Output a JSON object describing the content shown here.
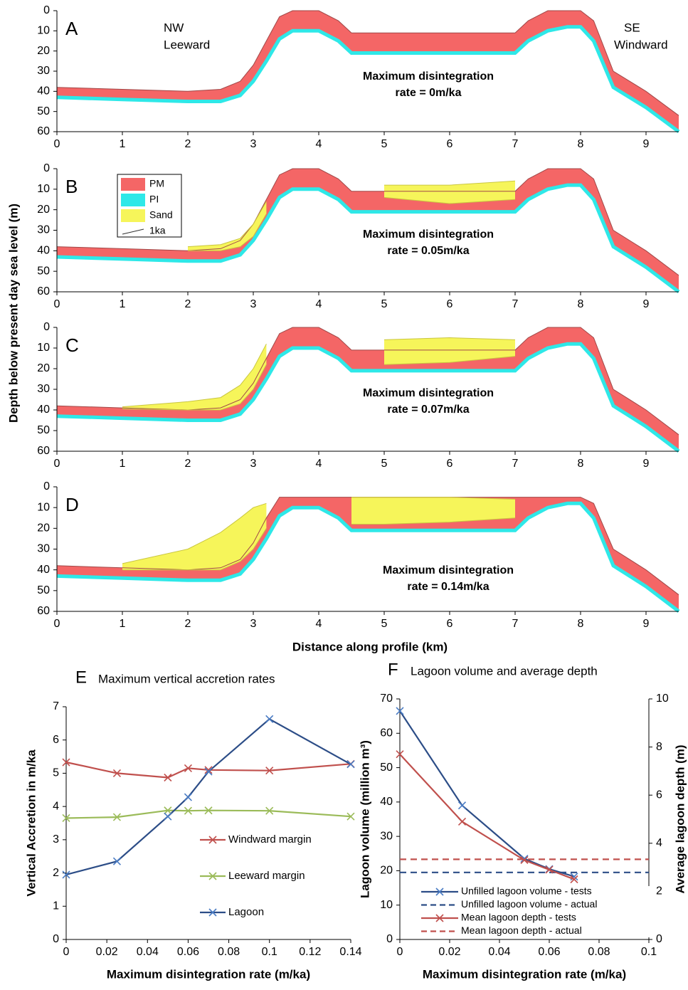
{
  "shared": {
    "ylabel": "Depth below present day sea level (m)",
    "xlabel": "Distance along profile (km)"
  },
  "chart_data": [
    {
      "type": "section",
      "letter": "A",
      "notes": [
        "Maximum disintegration",
        "rate = 0m/ka"
      ],
      "left_note": [
        "NW",
        "Leeward"
      ],
      "right_note": [
        "SE",
        "Windward"
      ],
      "xlim": [
        0,
        9.5
      ],
      "ylim": [
        60,
        0
      ],
      "xticks": [
        0,
        1,
        2,
        3,
        4,
        5,
        6,
        7,
        8,
        9
      ],
      "yticks": [
        0,
        10,
        20,
        30,
        40,
        50,
        60
      ],
      "colors": [
        "#f46666",
        "#2ee8e8",
        "#f6f55a"
      ],
      "x": [
        0,
        1,
        2,
        2.5,
        2.8,
        3,
        3.2,
        3.4,
        3.6,
        4,
        4.3,
        4.5,
        5,
        6,
        7,
        7.2,
        7.5,
        7.8,
        8,
        8.2,
        8.5,
        9,
        9.5
      ],
      "top": [
        38,
        39,
        40,
        39,
        35,
        27,
        15,
        3,
        0,
        0,
        5,
        11,
        11,
        11,
        11,
        5,
        0,
        0,
        0,
        5,
        30,
        40,
        52
      ],
      "base": [
        43,
        44,
        45,
        45,
        42,
        35,
        25,
        14,
        10,
        10,
        15,
        21,
        21,
        21,
        21,
        15,
        10,
        8,
        8,
        15,
        38,
        48,
        60
      ]
    },
    {
      "type": "section",
      "letter": "B",
      "notes": [
        "Maximum disintegration",
        "rate = 0.05m/ka"
      ],
      "legend": [
        {
          "name": "PM",
          "color": "#f46666"
        },
        {
          "name": "PI",
          "color": "#2ee8e8"
        },
        {
          "name": "Sand",
          "color": "#f6f55a"
        },
        {
          "name": "1ka",
          "color": "#333333"
        }
      ],
      "xlim": [
        0,
        9.5
      ],
      "ylim": [
        60,
        0
      ],
      "xticks": [
        0,
        1,
        2,
        3,
        4,
        5,
        6,
        7,
        8,
        9
      ],
      "yticks": [
        0,
        10,
        20,
        30,
        40,
        50,
        60
      ],
      "colors": [
        "#f46666",
        "#2ee8e8",
        "#f6f55a"
      ],
      "x": [
        0,
        1,
        2,
        2.5,
        2.8,
        3,
        3.2,
        3.4,
        3.6,
        4,
        4.3,
        4.5,
        5,
        6,
        7,
        7.2,
        7.5,
        7.8,
        8,
        8.2,
        8.5,
        9,
        9.5
      ],
      "top": [
        38,
        39,
        40,
        39,
        35,
        27,
        15,
        3,
        0,
        0,
        5,
        11,
        11,
        11,
        11,
        5,
        0,
        0,
        0,
        5,
        30,
        40,
        52
      ],
      "base": [
        43,
        44,
        45,
        45,
        42,
        35,
        25,
        14,
        10,
        10,
        15,
        21,
        21,
        21,
        21,
        15,
        10,
        8,
        8,
        15,
        38,
        48,
        60
      ],
      "sand": [
        null,
        null,
        38,
        37,
        34,
        27,
        16,
        null,
        null,
        null,
        null,
        null,
        8,
        8,
        6,
        null,
        null,
        null,
        null,
        null,
        null,
        null,
        null
      ],
      "sand_base": [
        null,
        null,
        40,
        40,
        38,
        33,
        22,
        null,
        null,
        null,
        null,
        null,
        14,
        17,
        15,
        null,
        null,
        null,
        null,
        null,
        null,
        null,
        null
      ]
    },
    {
      "type": "section",
      "letter": "C",
      "notes": [
        "Maximum disintegration",
        "rate = 0.07m/ka"
      ],
      "xlim": [
        0,
        9.5
      ],
      "ylim": [
        60,
        0
      ],
      "xticks": [
        0,
        1,
        2,
        3,
        4,
        5,
        6,
        7,
        8,
        9
      ],
      "yticks": [
        0,
        10,
        20,
        30,
        40,
        50,
        60
      ],
      "colors": [
        "#f46666",
        "#2ee8e8",
        "#f6f55a"
      ],
      "x": [
        0,
        1,
        2,
        2.5,
        2.8,
        3,
        3.2,
        3.4,
        3.6,
        4,
        4.3,
        4.5,
        5,
        6,
        7,
        7.2,
        7.5,
        7.8,
        8,
        8.2,
        8.5,
        9,
        9.5
      ],
      "top": [
        38,
        39,
        40,
        39,
        35,
        27,
        15,
        3,
        0,
        0,
        5,
        11,
        11,
        11,
        11,
        5,
        0,
        0,
        0,
        5,
        30,
        40,
        52
      ],
      "base": [
        43,
        44,
        45,
        45,
        42,
        35,
        25,
        14,
        10,
        10,
        15,
        21,
        21,
        21,
        21,
        15,
        10,
        8,
        8,
        15,
        38,
        48,
        60
      ],
      "sand": [
        null,
        38.5,
        36,
        34,
        28,
        20,
        8,
        null,
        null,
        null,
        null,
        null,
        6,
        5,
        6,
        null,
        null,
        null,
        null,
        null,
        null,
        null,
        null
      ],
      "sand_base": [
        null,
        39.5,
        40,
        40,
        37,
        30,
        18,
        null,
        null,
        null,
        null,
        null,
        18,
        17,
        14,
        null,
        null,
        null,
        null,
        null,
        null,
        null,
        null
      ]
    },
    {
      "type": "section",
      "letter": "D",
      "notes": [
        "Maximum disintegration",
        "rate = 0.14m/ka"
      ],
      "xlim": [
        0,
        9.5
      ],
      "ylim": [
        60,
        0
      ],
      "xticks": [
        0,
        1,
        2,
        3,
        4,
        5,
        6,
        7,
        8,
        9
      ],
      "yticks": [
        0,
        10,
        20,
        30,
        40,
        50,
        60
      ],
      "colors": [
        "#f46666",
        "#2ee8e8",
        "#f6f55a"
      ],
      "x": [
        0,
        1,
        2,
        2.5,
        2.8,
        3,
        3.2,
        3.4,
        3.6,
        4,
        4.3,
        4.5,
        5,
        6,
        7,
        7.2,
        7.5,
        7.8,
        8,
        8.2,
        8.5,
        9,
        9.5
      ],
      "top": [
        38,
        39,
        40,
        39,
        35,
        27,
        15,
        5,
        5,
        5,
        5,
        5,
        5,
        5,
        5,
        5,
        5,
        5,
        5,
        8,
        30,
        40,
        52
      ],
      "base": [
        43,
        44,
        45,
        45,
        42,
        35,
        25,
        14,
        10,
        10,
        15,
        21,
        21,
        21,
        21,
        15,
        10,
        8,
        8,
        15,
        38,
        48,
        60
      ],
      "sand": [
        null,
        37,
        30,
        22,
        15,
        10,
        8,
        null,
        null,
        null,
        null,
        5,
        5,
        5,
        6,
        null,
        null,
        null,
        null,
        null,
        null,
        null,
        null
      ],
      "sand_base": [
        null,
        40,
        40,
        40,
        36,
        30,
        20,
        null,
        null,
        null,
        null,
        18,
        18,
        17,
        15,
        null,
        null,
        null,
        null,
        null,
        null,
        null,
        null
      ]
    },
    {
      "type": "line",
      "letter": "E",
      "title": "Maximum vertical accretion rates",
      "xlabel": "Maximum disintegration rate (m/ka)",
      "ylabel": "Vertical Accretion in m/ka",
      "xlim": [
        0,
        0.14
      ],
      "xticks": [
        0,
        0.02,
        0.04,
        0.06,
        0.08,
        0.1,
        0.12,
        0.14
      ],
      "ylim": [
        0,
        7
      ],
      "yticks": [
        0,
        1,
        2,
        3,
        4,
        5,
        6,
        7
      ],
      "legend": "lower-right",
      "series": [
        {
          "name": "Windward margin",
          "color": "#c0504d",
          "x": [
            0,
            0.025,
            0.05,
            0.06,
            0.07,
            0.1,
            0.14
          ],
          "values": [
            5.33,
            5.0,
            4.87,
            5.15,
            5.1,
            5.08,
            5.28
          ]
        },
        {
          "name": "Leeward margin",
          "color": "#9bbb59",
          "x": [
            0,
            0.025,
            0.05,
            0.06,
            0.07,
            0.1,
            0.14
          ],
          "values": [
            3.65,
            3.68,
            3.88,
            3.87,
            3.88,
            3.87,
            3.7
          ]
        },
        {
          "name": "Lagoon",
          "color": "#2c4d87",
          "x": [
            0,
            0.025,
            0.05,
            0.06,
            0.07,
            0.1,
            0.14
          ],
          "values": [
            1.95,
            2.35,
            3.7,
            4.28,
            5.05,
            6.63,
            5.27
          ]
        }
      ]
    },
    {
      "type": "line",
      "letter": "F",
      "title": "Lagoon volume and average depth",
      "xlabel": "Maximum disintegration rate (m/ka)",
      "ylabel": "Lagoon volume (million m³)",
      "y2label": "Average lagoon depth (m)",
      "xlim": [
        0,
        0.1
      ],
      "xticks": [
        0,
        0.02,
        0.04,
        0.06,
        0.08,
        0.1
      ],
      "ylim": [
        0,
        70
      ],
      "yticks": [
        0,
        10,
        20,
        30,
        40,
        50,
        60,
        70
      ],
      "y2lim": [
        0,
        10
      ],
      "y2ticks": [
        0,
        2,
        4,
        6,
        8,
        10
      ],
      "legend": "lower-left",
      "series": [
        {
          "name": "Unfilled lagoon volume - tests",
          "color": "#2c4d87",
          "x": [
            0,
            0.025,
            0.05,
            0.06,
            0.07
          ],
          "values": [
            66.5,
            39,
            23.5,
            20.5,
            18.3
          ]
        },
        {
          "name": "Unfilled lagoon volume - actual",
          "color": "#2c4d87",
          "dashed": true,
          "x": [
            0,
            0.1
          ],
          "values": [
            19.5,
            19.5
          ]
        },
        {
          "name": "Mean lagoon depth - tests",
          "color": "#c0504d",
          "axis": "y2",
          "x": [
            0,
            0.025,
            0.05,
            0.06,
            0.07
          ],
          "values": [
            7.7,
            4.9,
            3.3,
            2.9,
            2.5
          ]
        },
        {
          "name": "Mean lagoon depth - actual",
          "color": "#c0504d",
          "axis": "y2",
          "dashed": true,
          "x": [
            0,
            0.1
          ],
          "values": [
            3.33,
            3.33
          ]
        }
      ]
    }
  ]
}
